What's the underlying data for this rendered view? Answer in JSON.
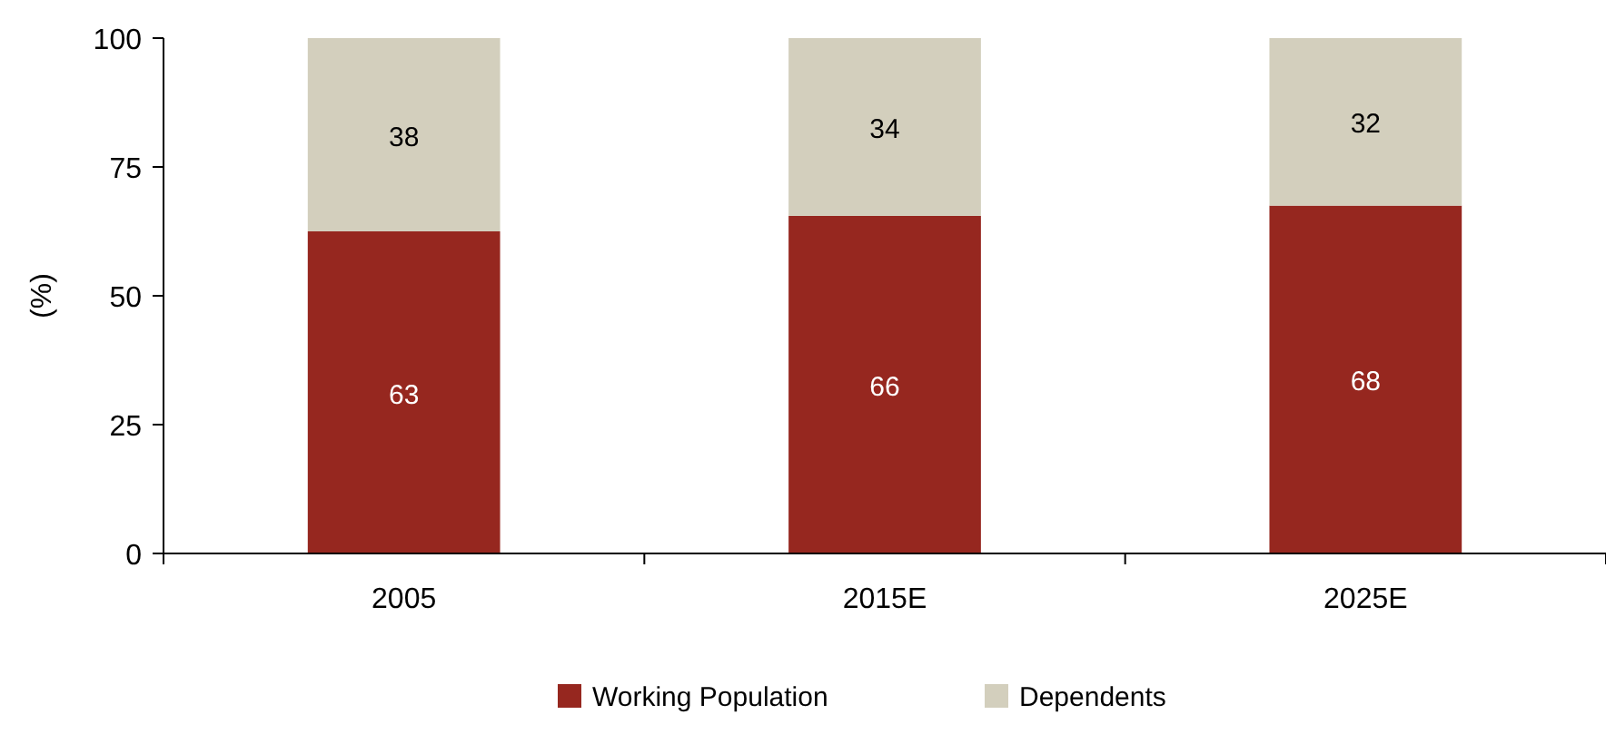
{
  "chart_data": {
    "type": "bar",
    "stacked": true,
    "ylabel": "(%)",
    "categories": [
      "2005",
      "2015E",
      "2025E"
    ],
    "ylim": [
      0,
      100
    ],
    "yticks": [
      0,
      25,
      50,
      75,
      100
    ],
    "grid": false,
    "legend": "bottom",
    "series": [
      {
        "name": "Working Population",
        "color": "#96271f",
        "values": [
          62.5,
          65.5,
          67.5
        ],
        "value_labels": [
          "63",
          "66",
          "68"
        ]
      },
      {
        "name": "Dependents",
        "color": "#d3cfbd",
        "values": [
          37.5,
          34.5,
          32.5
        ],
        "value_labels": [
          "38",
          "34",
          "32"
        ]
      }
    ]
  }
}
